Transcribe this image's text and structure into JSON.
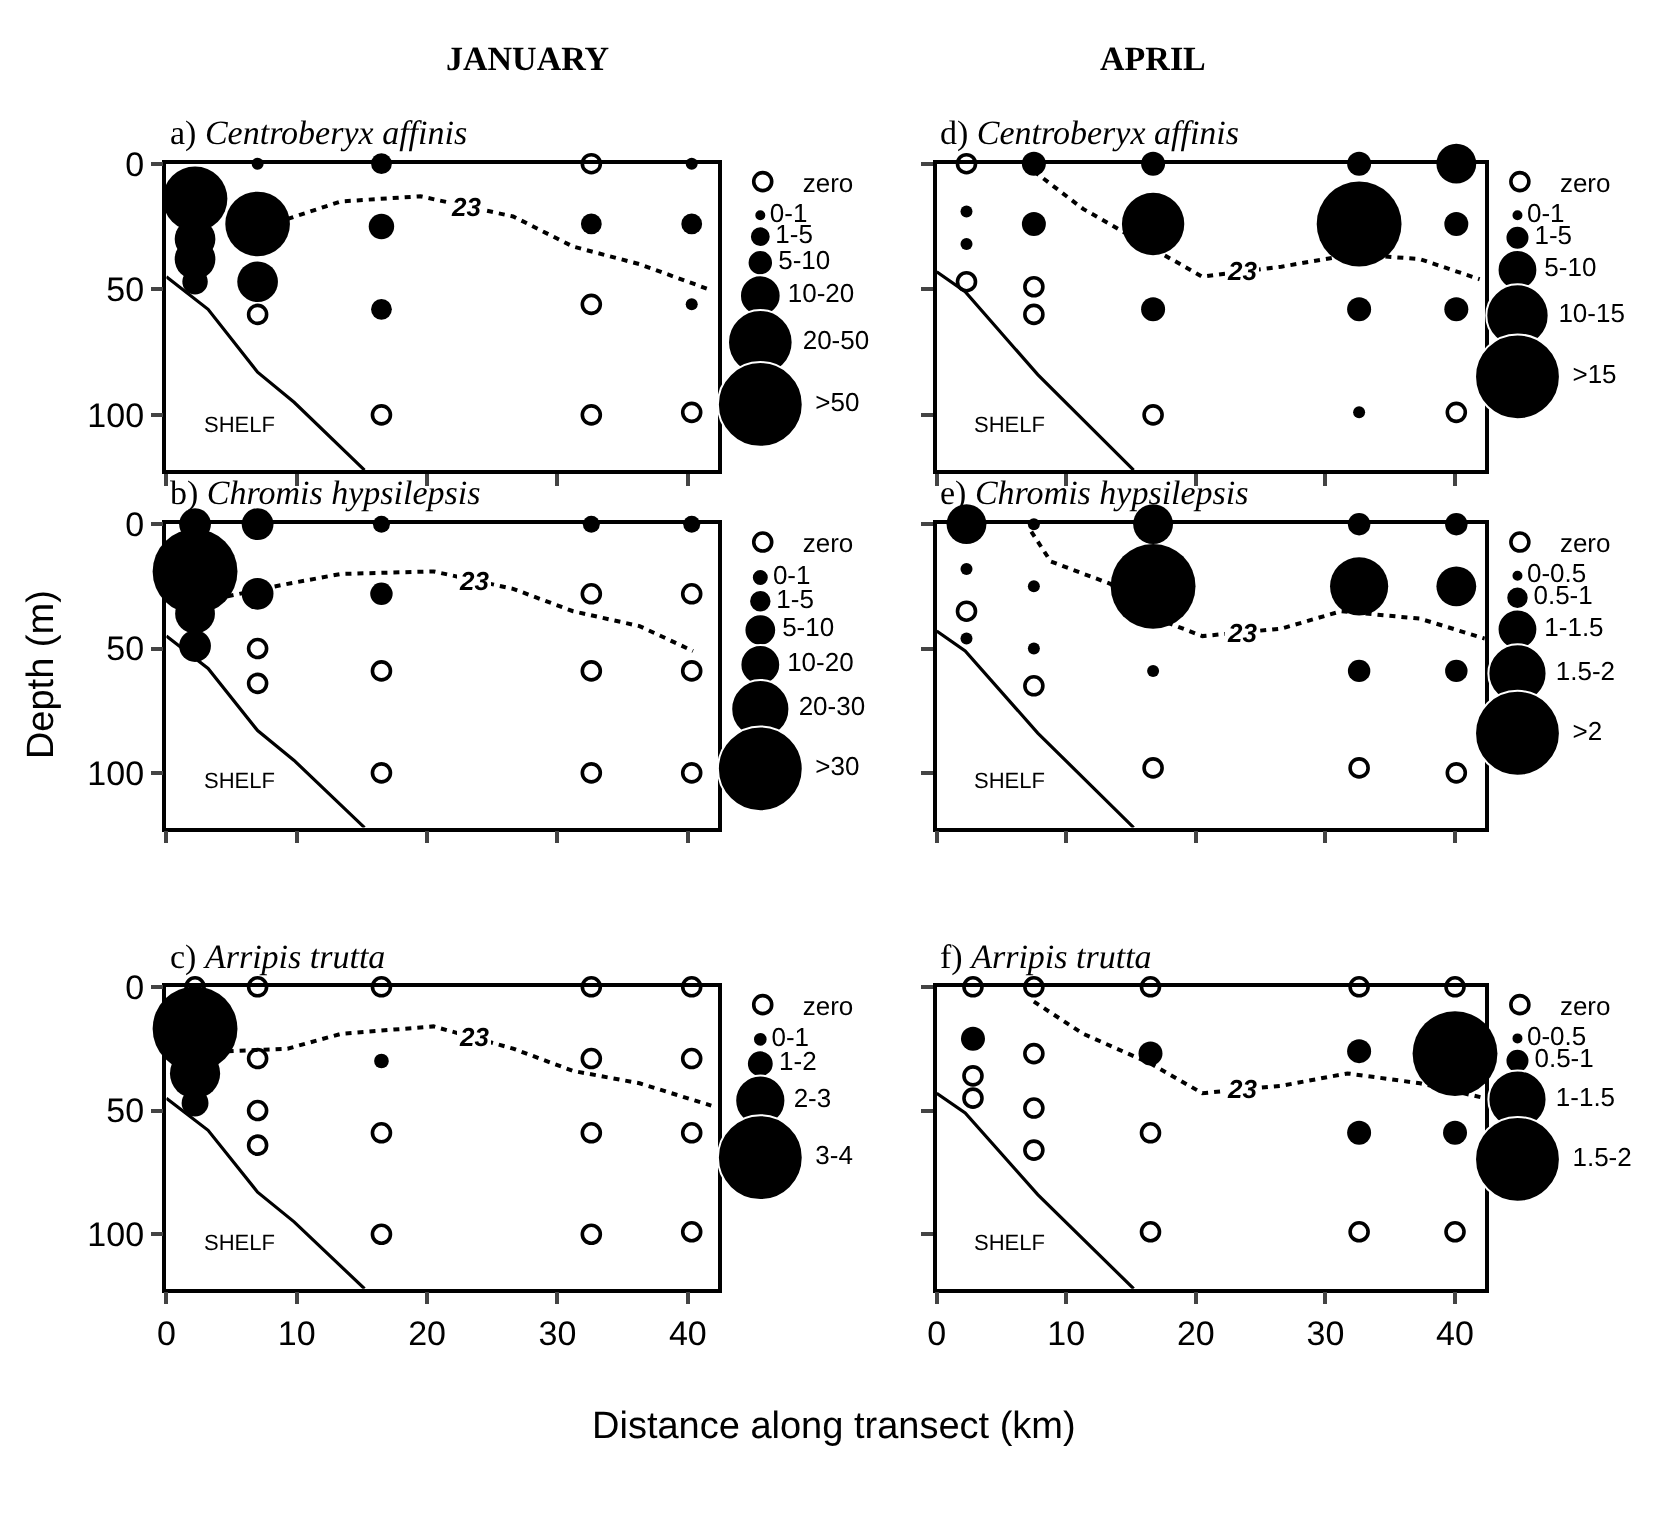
{
  "chart_data": [
    {
      "type": "bubble",
      "title": "a) Centroberyx affinis",
      "subtitle": "JANUARY",
      "annotations": [
        "SHELF"
      ],
      "xlim": [
        0,
        42.3
      ],
      "xticks": [
        0,
        10,
        20,
        30,
        40
      ],
      "ylim": [
        122,
        0
      ],
      "yticks": [
        0,
        50,
        100
      ],
      "tick_labels": "y",
      "size_legend": [
        {
          "value": 0.02,
          "label": "0-1"
        },
        {
          "value": 0.06,
          "label": "1-5"
        },
        {
          "value": 0.09,
          "label": "5-10"
        },
        {
          "value": 0.23,
          "label": "10-20"
        },
        {
          "value": 0.58,
          "label": "20-50"
        },
        {
          "value": 1,
          "label": ">50"
        }
      ],
      "series": [
        {
          "color": "#000000",
          "x": [
            2.2,
            2.2,
            2.2,
            2.2,
            7,
            7,
            7,
            16.5,
            16.5,
            16.5,
            32.6,
            40.3,
            40.3,
            40.3
          ],
          "values": [
            14,
            30,
            38,
            47,
            0,
            24,
            47,
            0,
            25,
            58,
            24,
            0,
            24,
            56
          ],
          "sizes": [
            0.58,
            0.23,
            0.23,
            0.09,
            0.02,
            0.58,
            0.23,
            0.06,
            0.09,
            0.06,
            0.06,
            0.02,
            0.06,
            0.02
          ]
        },
        {
          "type": "scatter",
          "name": "zero",
          "color": "#000000",
          "x": [
            7,
            16.5,
            32.6,
            32.6,
            32.6,
            40.3
          ],
          "values": [
            60,
            100,
            0,
            56,
            100,
            99
          ]
        },
        {
          "type": "line",
          "name": "23",
          "color": "#000000",
          "line_style": "dotted",
          "x": [
            9.3,
            13.4,
            19.5,
            26.6,
            31.2,
            36.3,
            41.6
          ],
          "values": [
            22,
            15,
            13,
            21,
            33,
            40,
            50
          ]
        },
        {
          "type": "line",
          "color": "#000000",
          "line_style": "solid",
          "x": [
            0,
            3.2,
            7,
            9.8,
            15.2
          ],
          "values": [
            45,
            58,
            83,
            95,
            122
          ]
        }
      ]
    },
    {
      "type": "bubble",
      "title": "d) Centroberyx affinis",
      "subtitle": "APRIL",
      "annotations": [
        "SHELF"
      ],
      "xlim": [
        0,
        42.3
      ],
      "xticks": [
        0,
        10,
        20,
        30,
        40
      ],
      "ylim": [
        122,
        0
      ],
      "yticks": [
        0,
        50,
        100
      ],
      "tick_labels": false,
      "size_legend": [
        {
          "value": 0.02,
          "label": "0-1"
        },
        {
          "value": 0.08,
          "label": "1-5"
        },
        {
          "value": 0.22,
          "label": "5-10"
        },
        {
          "value": 0.54,
          "label": "10-15"
        },
        {
          "value": 1,
          "label": ">15"
        }
      ],
      "series": [
        {
          "color": "#000000",
          "x": [
            2.3,
            2.3,
            7.5,
            7.5,
            16.7,
            16.7,
            16.7,
            32.6,
            32.6,
            32.6,
            32.6,
            40.1,
            40.1,
            40.1
          ],
          "values": [
            19,
            32,
            0,
            24,
            0,
            24,
            58,
            0,
            24,
            58,
            99,
            0,
            24,
            58
          ],
          "sizes": [
            0.02,
            0.02,
            0.08,
            0.08,
            0.08,
            0.54,
            0.08,
            0.08,
            1,
            0.08,
            0.02,
            0.22,
            0.08,
            0.08
          ]
        },
        {
          "type": "scatter",
          "name": "zero",
          "color": "#000000",
          "x": [
            2.3,
            2.3,
            7.5,
            7.5,
            16.7,
            40.1
          ],
          "values": [
            0,
            47,
            49,
            60,
            100,
            99
          ]
        },
        {
          "type": "line",
          "name": "23",
          "color": "#000000",
          "line_style": "dotted",
          "x": [
            7.5,
            11.3,
            16.4,
            20.5,
            26.6,
            32.2,
            37.3,
            41.9
          ],
          "values": [
            3,
            18,
            33,
            45,
            41,
            36,
            38,
            46
          ]
        },
        {
          "type": "line",
          "color": "#000000",
          "line_style": "solid",
          "x": [
            0,
            2.2,
            7.8,
            15.2
          ],
          "values": [
            43,
            51,
            84,
            122
          ]
        }
      ]
    },
    {
      "type": "bubble",
      "title": "b) Chromis hypsilepsis",
      "ylabel": "Depth (m)",
      "annotations": [
        "SHELF"
      ],
      "xlim": [
        0,
        42.3
      ],
      "xticks": [
        0,
        10,
        20,
        30,
        40
      ],
      "ylim": [
        122,
        0
      ],
      "yticks": [
        0,
        50,
        100
      ],
      "tick_labels": "y",
      "size_legend": [
        {
          "value": 0.04,
          "label": "0-1"
        },
        {
          "value": 0.07,
          "label": "1-5"
        },
        {
          "value": 0.14,
          "label": "5-10"
        },
        {
          "value": 0.22,
          "label": "10-20"
        },
        {
          "value": 0.47,
          "label": "20-30"
        },
        {
          "value": 1,
          "label": ">30"
        }
      ],
      "series": [
        {
          "color": "#000000",
          "x": [
            2.2,
            2.2,
            2.2,
            2.2,
            7,
            7,
            16.5,
            16.5,
            32.6,
            40.3
          ],
          "values": [
            0,
            19,
            36,
            49,
            0,
            28,
            0,
            28,
            0,
            0
          ],
          "sizes": [
            0.14,
            1,
            0.22,
            0.14,
            0.14,
            0.14,
            0.04,
            0.07,
            0.04,
            0.04
          ]
        },
        {
          "type": "scatter",
          "name": "zero",
          "color": "#000000",
          "x": [
            7,
            7,
            16.5,
            16.5,
            32.6,
            32.6,
            32.6,
            40.3,
            40.3,
            40.3
          ],
          "values": [
            50,
            64,
            59,
            100,
            28,
            59,
            100,
            28,
            59,
            100
          ]
        },
        {
          "type": "line",
          "name": "23",
          "color": "#000000",
          "line_style": "dotted",
          "x": [
            4.7,
            9.3,
            13.4,
            20.5,
            26.6,
            31.2,
            36.3,
            40.4
          ],
          "values": [
            29,
            24,
            20,
            19,
            26,
            35,
            41,
            51
          ]
        },
        {
          "type": "line",
          "color": "#000000",
          "line_style": "solid",
          "x": [
            0,
            3.2,
            7,
            9.8,
            15.2
          ],
          "values": [
            45,
            58,
            83,
            95,
            122
          ]
        }
      ]
    },
    {
      "type": "bubble",
      "title": "e) Chromis hypsilepsis",
      "annotations": [
        "SHELF"
      ],
      "xlim": [
        0,
        42.3
      ],
      "xticks": [
        0,
        10,
        20,
        30,
        40
      ],
      "ylim": [
        122,
        0
      ],
      "yticks": [
        0,
        50,
        100
      ],
      "tick_labels": false,
      "size_legend": [
        {
          "value": 0.02,
          "label": "0-0.5"
        },
        {
          "value": 0.07,
          "label": "0.5-1"
        },
        {
          "value": 0.22,
          "label": "1-1.5"
        },
        {
          "value": 0.47,
          "label": "1.5-2"
        },
        {
          "value": 1,
          "label": ">2"
        }
      ],
      "series": [
        {
          "color": "#000000",
          "x": [
            2.3,
            2.3,
            2.3,
            7.5,
            7.5,
            7.5,
            16.7,
            16.7,
            16.7,
            32.6,
            32.6,
            32.6,
            40.1,
            40.1,
            40.1
          ],
          "values": [
            0,
            18,
            46,
            0,
            25,
            50,
            0,
            25,
            59,
            0,
            25,
            59,
            0,
            25,
            59
          ],
          "sizes": [
            0.22,
            0.02,
            0.02,
            0.02,
            0.02,
            0.02,
            0.22,
            1,
            0.02,
            0.07,
            0.47,
            0.07,
            0.07,
            0.22,
            0.07
          ]
        },
        {
          "type": "scatter",
          "name": "zero",
          "color": "#000000",
          "x": [
            2.3,
            7.5,
            16.7,
            32.6,
            40.1
          ],
          "values": [
            35,
            65,
            98,
            98,
            100
          ]
        },
        {
          "type": "line",
          "name": "23",
          "color": "#000000",
          "line_style": "dotted",
          "x": [
            7.3,
            8.8,
            13.4,
            17.5,
            20.5,
            26.6,
            31.2,
            37.3,
            42.3
          ],
          "values": [
            3,
            15,
            24,
            39,
            45,
            42,
            35,
            38,
            46
          ]
        },
        {
          "type": "line",
          "color": "#000000",
          "line_style": "solid",
          "x": [
            0,
            2.2,
            7.8,
            15.2
          ],
          "values": [
            43,
            51,
            84,
            122
          ]
        }
      ]
    },
    {
      "type": "bubble",
      "title": "c) Arripis trutta",
      "xlabel": "Distance along transect (km)",
      "annotations": [
        "SHELF"
      ],
      "xlim": [
        0,
        42.3
      ],
      "xticks": [
        0,
        10,
        20,
        30,
        40
      ],
      "ylim": [
        122,
        0
      ],
      "yticks": [
        0,
        50,
        100
      ],
      "size_legend": [
        {
          "value": 0.03,
          "label": "0-1"
        },
        {
          "value": 0.1,
          "label": "1-2"
        },
        {
          "value": 0.35,
          "label": "2-3"
        },
        {
          "value": 1,
          "label": "3-4"
        }
      ],
      "series": [
        {
          "color": "#000000",
          "x": [
            2.2,
            2.2,
            2.2,
            16.5
          ],
          "values": [
            17,
            35,
            47,
            30
          ],
          "sizes": [
            1,
            0.35,
            0.1,
            0.03
          ]
        },
        {
          "type": "scatter",
          "name": "zero",
          "color": "#000000",
          "x": [
            2.2,
            7,
            7,
            7,
            7,
            16.5,
            16.5,
            16.5,
            32.6,
            32.6,
            32.6,
            32.6,
            40.3,
            40.3,
            40.3,
            40.3
          ],
          "values": [
            0,
            0,
            29,
            50,
            64,
            0,
            59,
            100,
            0,
            29,
            59,
            100,
            0,
            29,
            59,
            99
          ]
        },
        {
          "type": "line",
          "name": "23",
          "color": "#000000",
          "line_style": "dotted",
          "x": [
            4.7,
            9.3,
            13.4,
            20.5,
            26.6,
            31.2,
            36.3,
            41.8
          ],
          "values": [
            26,
            25,
            19,
            16,
            25,
            34,
            39,
            48
          ]
        },
        {
          "type": "line",
          "color": "#000000",
          "line_style": "solid",
          "x": [
            0,
            3.2,
            7,
            9.8,
            15.2
          ],
          "values": [
            45,
            58,
            83,
            95,
            122
          ]
        }
      ]
    },
    {
      "type": "bubble",
      "title": "f) Arripis trutta",
      "annotations": [
        "SHELF"
      ],
      "xlim": [
        0,
        42.3
      ],
      "xticks": [
        0,
        10,
        20,
        30,
        40
      ],
      "ylim": [
        122,
        0
      ],
      "yticks": [
        0,
        50,
        100
      ],
      "tick_labels": "x",
      "size_legend": [
        {
          "value": 0.02,
          "label": "0-0.5"
        },
        {
          "value": 0.08,
          "label": "0.5-1"
        },
        {
          "value": 0.47,
          "label": "1-1.5"
        },
        {
          "value": 1,
          "label": "1.5-2"
        }
      ],
      "series": [
        {
          "color": "#000000",
          "x": [
            2.8,
            16.5,
            32.6,
            32.6,
            40,
            40
          ],
          "values": [
            21,
            27,
            26,
            59,
            27,
            59
          ],
          "sizes": [
            0.08,
            0.08,
            0.08,
            0.08,
            1,
            0.08
          ]
        },
        {
          "type": "scatter",
          "name": "zero",
          "color": "#000000",
          "x": [
            2.8,
            2.8,
            2.8,
            7.5,
            7.5,
            7.5,
            7.5,
            16.5,
            16.5,
            16.5,
            32.6,
            32.6,
            40,
            40
          ],
          "values": [
            0,
            36,
            45,
            0,
            27,
            49,
            66,
            0,
            59,
            99,
            0,
            99,
            0,
            99
          ]
        },
        {
          "type": "line",
          "name": "23",
          "color": "#000000",
          "line_style": "dotted",
          "x": [
            7.5,
            11.3,
            16.5,
            20.5,
            26.6,
            31.7,
            37.3,
            42.3
          ],
          "values": [
            6,
            19,
            31,
            43,
            40,
            35,
            39,
            45
          ]
        },
        {
          "type": "line",
          "color": "#000000",
          "line_style": "solid",
          "x": [
            0,
            2.2,
            7.8,
            15.2
          ],
          "values": [
            43,
            51,
            84,
            122
          ]
        }
      ]
    }
  ]
}
